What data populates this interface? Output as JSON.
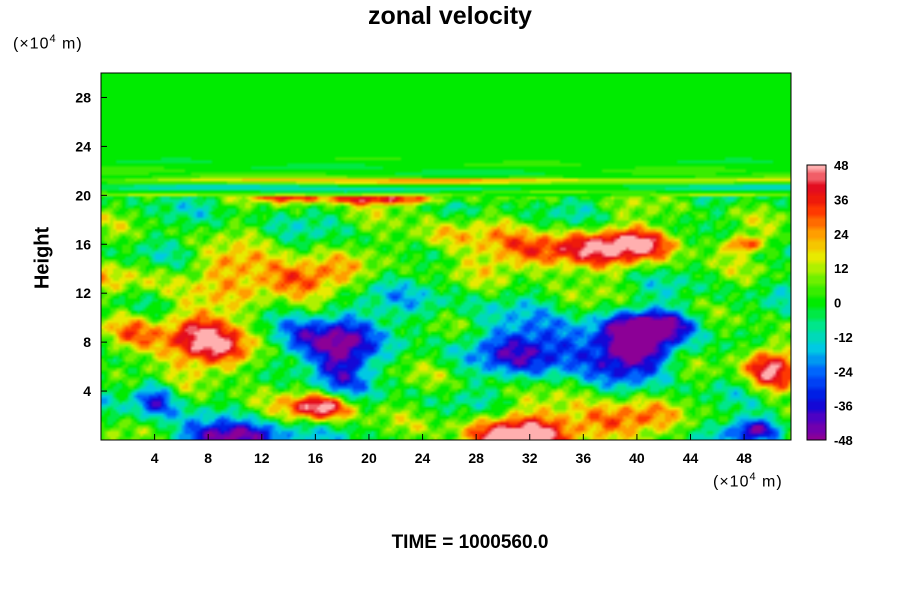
{
  "chart_data": {
    "type": "heatmap",
    "title": "zonal velocity",
    "ylabel": "Height",
    "xlabel": "",
    "x_unit_prefix": "(×10",
    "x_unit_exp": "4",
    "x_unit_suffix": " m)",
    "y_unit_prefix": "(×10",
    "y_unit_exp": "4",
    "y_unit_suffix": " m)",
    "xlim": [
      0,
      51.5
    ],
    "ylim": [
      0,
      30
    ],
    "x_ticks": [
      "4",
      "8",
      "12",
      "16",
      "20",
      "24",
      "28",
      "32",
      "36",
      "40",
      "44",
      "48"
    ],
    "y_ticks": [
      "4",
      "8",
      "12",
      "16",
      "20",
      "24",
      "28"
    ],
    "colorbar": {
      "range": [
        -48,
        48
      ],
      "ticks": [
        "48",
        "36",
        "24",
        "12",
        "0",
        "-12",
        "-24",
        "-36",
        "-48"
      ]
    },
    "features": [
      {
        "x": 21,
        "y": 19.7,
        "sx": 6,
        "sy": 0.45,
        "v": 38
      },
      {
        "x": 14,
        "y": 19.8,
        "sx": 3,
        "sy": 0.3,
        "v": 20
      },
      {
        "x": 28,
        "y": 21.2,
        "sx": 30,
        "sy": 0.25,
        "v": 22
      },
      {
        "x": 26,
        "y": 20.6,
        "sx": 30,
        "sy": 0.25,
        "v": -10
      },
      {
        "x": 14.5,
        "y": 13.2,
        "sx": 4,
        "sy": 1.6,
        "v": 40
      },
      {
        "x": 10,
        "y": 14.5,
        "sx": 3,
        "sy": 1.2,
        "v": 18
      },
      {
        "x": 34,
        "y": 15.3,
        "sx": 5.5,
        "sy": 1.7,
        "v": 40
      },
      {
        "x": 40.5,
        "y": 16.2,
        "sx": 3.5,
        "sy": 1.3,
        "v": 38
      },
      {
        "x": 48,
        "y": 16,
        "sx": 1.5,
        "sy": 0.7,
        "v": 35
      },
      {
        "x": 25,
        "y": 16.5,
        "sx": 3,
        "sy": 1.2,
        "v": 22
      },
      {
        "x": 8.5,
        "y": 8,
        "sx": 3.5,
        "sy": 2.8,
        "v": 46
      },
      {
        "x": 2,
        "y": 8.5,
        "sx": 2,
        "sy": 2,
        "v": 30
      },
      {
        "x": 18,
        "y": 7.2,
        "sx": 2.2,
        "sy": 3,
        "v": -44
      },
      {
        "x": 15,
        "y": 8,
        "sx": 2.5,
        "sy": 2,
        "v": -32
      },
      {
        "x": 33,
        "y": 7.5,
        "sx": 5,
        "sy": 2.2,
        "v": -40
      },
      {
        "x": 40,
        "y": 7.6,
        "sx": 3,
        "sy": 2.3,
        "v": -50
      },
      {
        "x": 42,
        "y": 9.5,
        "sx": 3,
        "sy": 1.2,
        "v": -35
      },
      {
        "x": 4,
        "y": 3.3,
        "sx": 1.6,
        "sy": 1.6,
        "v": -38
      },
      {
        "x": 16.5,
        "y": 2.7,
        "sx": 2.4,
        "sy": 1.1,
        "v": 50
      },
      {
        "x": 10,
        "y": 0.2,
        "sx": 3.8,
        "sy": 1.2,
        "v": -52
      },
      {
        "x": 31,
        "y": 0.3,
        "sx": 4,
        "sy": 1.8,
        "v": 50
      },
      {
        "x": 38,
        "y": 1.5,
        "sx": 4,
        "sy": 1.6,
        "v": 35
      },
      {
        "x": 49,
        "y": 0.8,
        "sx": 2,
        "sy": 1,
        "v": -50
      },
      {
        "x": 50,
        "y": 6,
        "sx": 2,
        "sy": 2,
        "v": 48
      },
      {
        "x": 22,
        "y": 11,
        "sx": 6,
        "sy": 2,
        "v": -8
      },
      {
        "x": 2,
        "y": 13,
        "sx": 4,
        "sy": 1.5,
        "v": 14
      }
    ]
  },
  "footer": {
    "time_label": "TIME = 1000560.0"
  }
}
